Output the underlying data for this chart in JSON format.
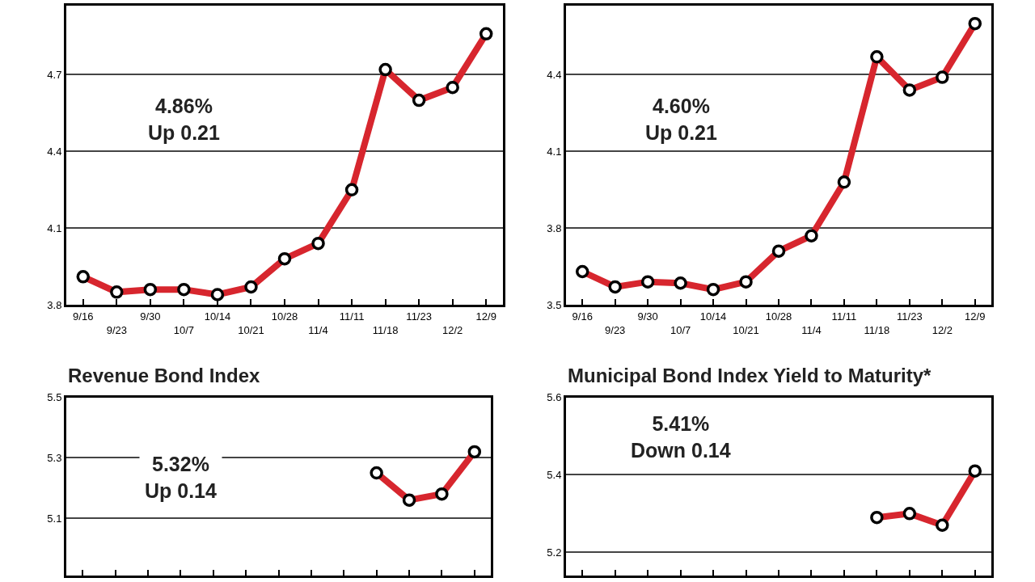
{
  "chart_data": [
    {
      "type": "line",
      "categories": [
        "9/16",
        "9/23",
        "9/30",
        "10/7",
        "10/14",
        "10/21",
        "10/28",
        "11/4",
        "11/11",
        "11/18",
        "11/23",
        "12/2",
        "12/9"
      ],
      "values": [
        3.91,
        3.85,
        3.86,
        3.86,
        3.84,
        3.87,
        3.98,
        4.04,
        4.25,
        4.72,
        4.6,
        4.65,
        4.86
      ],
      "color": "#d7262e",
      "ylim": [
        3.8,
        4.97
      ],
      "yticks": [
        3.8,
        4.1,
        4.4,
        4.7
      ],
      "grid": "y",
      "marker": "circle",
      "annotations": [
        "4.86%\nUp 0.21"
      ]
    },
    {
      "type": "line",
      "categories": [
        "9/16",
        "9/23",
        "9/30",
        "10/7",
        "10/14",
        "10/21",
        "10/28",
        "11/4",
        "11/11",
        "11/18",
        "11/23",
        "12/2",
        "12/9"
      ],
      "values": [
        3.63,
        3.57,
        3.59,
        3.585,
        3.56,
        3.59,
        3.71,
        3.77,
        3.98,
        4.47,
        4.34,
        4.39,
        4.6
      ],
      "color": "#d7262e",
      "ylim": [
        3.5,
        4.67
      ],
      "yticks": [
        3.5,
        3.8,
        4.1,
        4.4
      ],
      "grid": "y",
      "marker": "circle",
      "annotations": [
        "4.60%\nUp 0.21"
      ]
    },
    {
      "type": "line",
      "title": "Revenue Bond Index",
      "categories": [
        null,
        null,
        null,
        null,
        null,
        null,
        null,
        null,
        null,
        null,
        null,
        null,
        null
      ],
      "values": [
        null,
        null,
        null,
        null,
        null,
        null,
        null,
        null,
        null,
        5.25,
        5.16,
        5.18,
        5.32
      ],
      "color": "#d7262e",
      "ylim": [
        4.91,
        5.5
      ],
      "yticks": [
        5.1,
        5.3,
        5.5
      ],
      "grid": "y",
      "marker": "circle",
      "annotations": [
        "5.32%\nUp 0.14"
      ]
    },
    {
      "type": "line",
      "title": "Municipal Bond Index Yield to Maturity*",
      "categories": [
        null,
        null,
        null,
        null,
        null,
        null,
        null,
        null,
        null,
        null,
        null,
        null,
        null
      ],
      "values": [
        null,
        null,
        null,
        null,
        null,
        null,
        null,
        null,
        null,
        5.29,
        5.3,
        5.27,
        5.41
      ],
      "color": "#d7262e",
      "ylim": [
        5.14,
        5.6
      ],
      "yticks": [
        5.2,
        5.4,
        5.6
      ],
      "grid": "y",
      "marker": "circle",
      "annotations": [
        "5.41%\nDown 0.14"
      ]
    }
  ]
}
